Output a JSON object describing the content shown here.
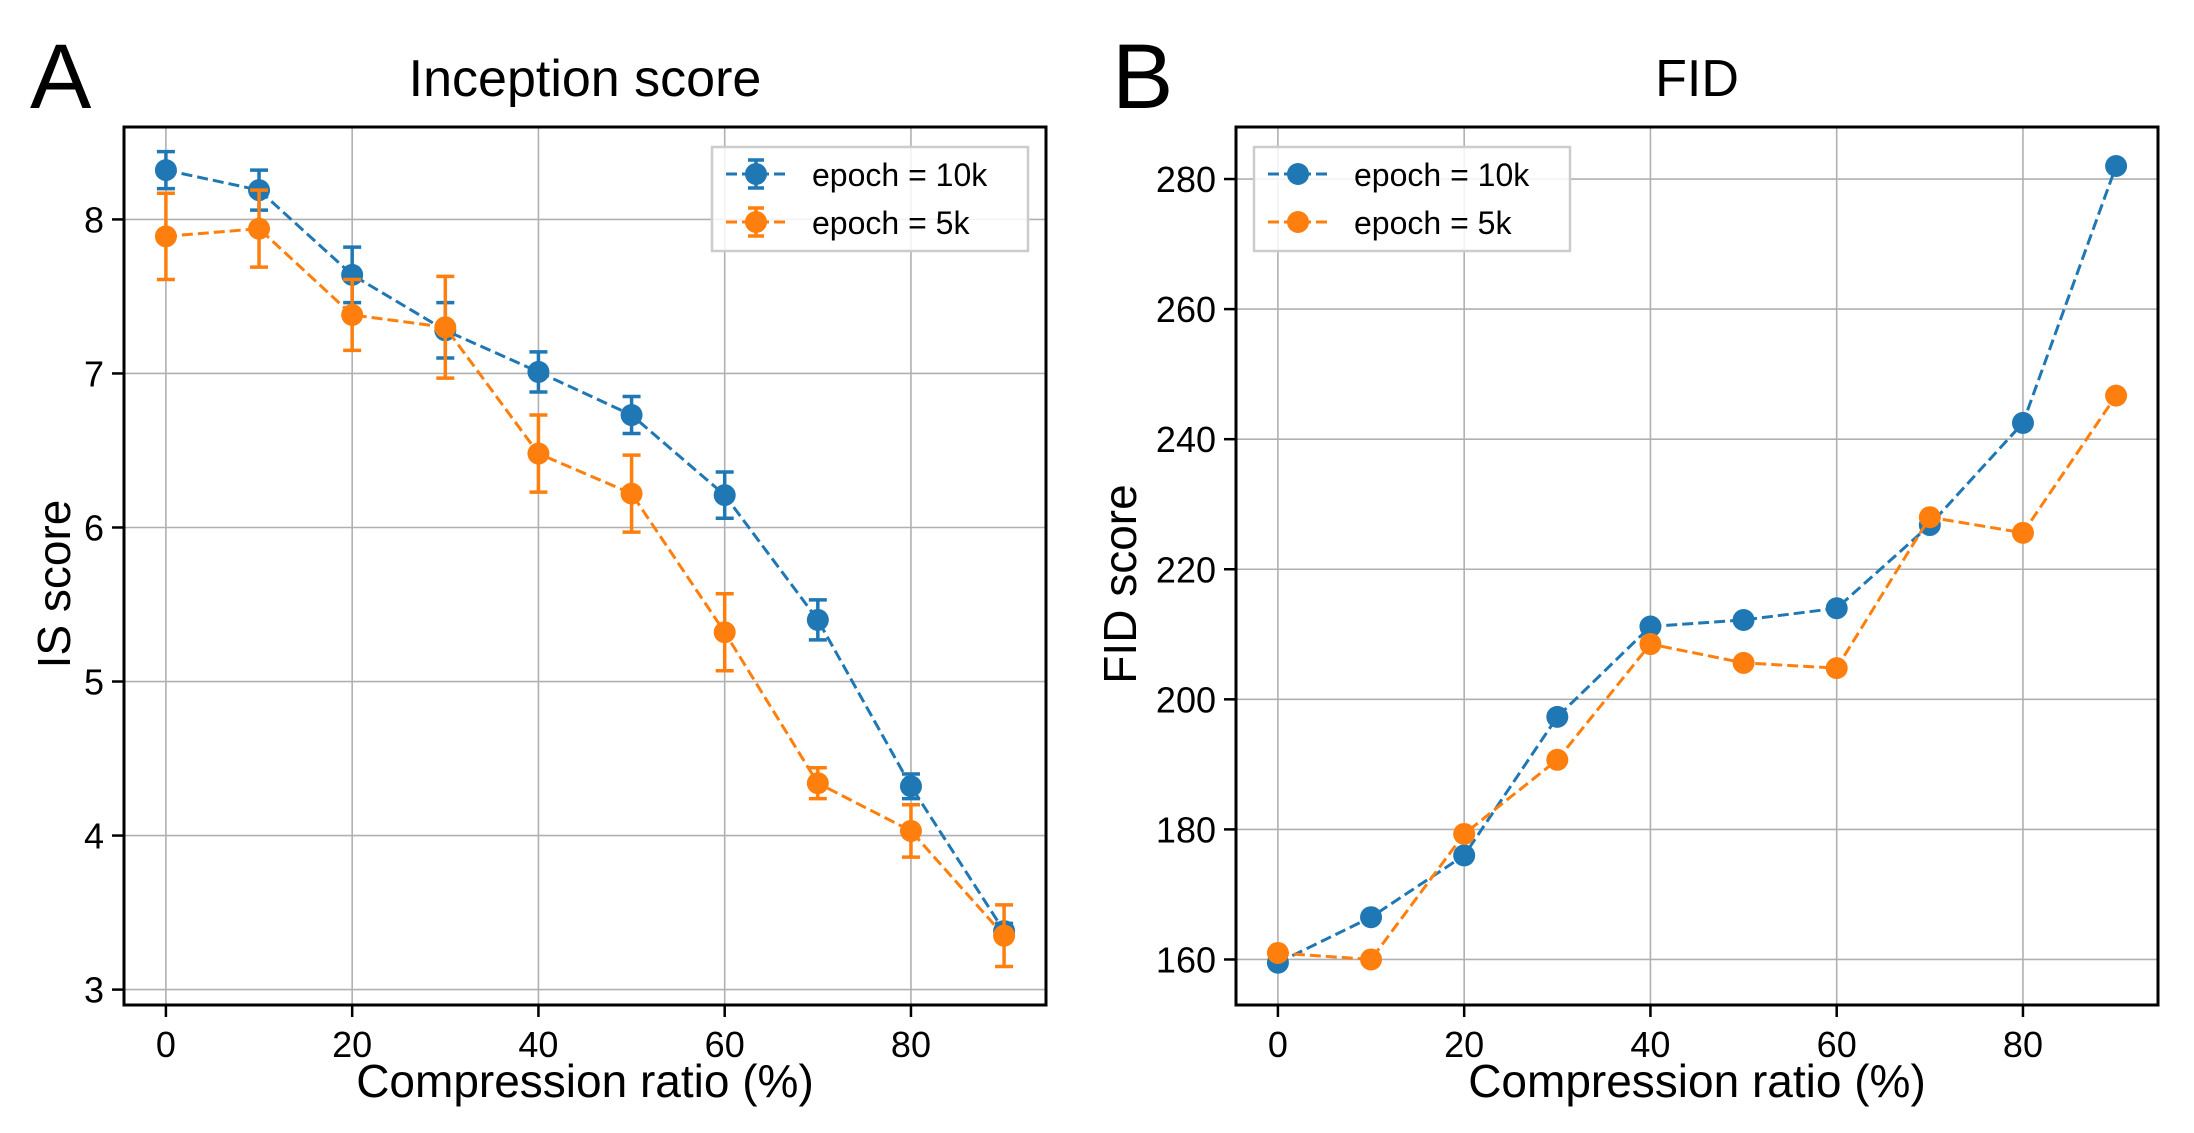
{
  "chart_data": [
    {
      "panel_label": "A",
      "type": "line",
      "title": "Inception score",
      "xlabel": "Compression ratio (%)",
      "ylabel": "IS score",
      "xlim": [
        -4.5,
        94.5
      ],
      "ylim": [
        2.9,
        8.6
      ],
      "xticks": [
        0,
        20,
        40,
        60,
        80
      ],
      "yticks": [
        3,
        4,
        5,
        6,
        7,
        8
      ],
      "grid": true,
      "legend_position": "top-right",
      "error_bars": true,
      "x": [
        0,
        10,
        20,
        30,
        40,
        50,
        60,
        70,
        80,
        90
      ],
      "series": [
        {
          "name": "epoch = 10k",
          "color": "#1f77b4",
          "values": [
            8.32,
            8.19,
            7.64,
            7.28,
            7.01,
            6.73,
            6.21,
            5.4,
            4.32,
            3.38
          ],
          "errors": [
            0.12,
            0.13,
            0.18,
            0.18,
            0.13,
            0.12,
            0.15,
            0.13,
            0.08,
            0.05
          ]
        },
        {
          "name": "epoch = 5k",
          "color": "#ff7f0e",
          "values": [
            7.89,
            7.94,
            7.38,
            7.3,
            6.48,
            6.22,
            5.32,
            4.34,
            4.03,
            3.35
          ],
          "errors": [
            0.28,
            0.25,
            0.23,
            0.33,
            0.25,
            0.25,
            0.25,
            0.1,
            0.17,
            0.2
          ]
        }
      ]
    },
    {
      "panel_label": "B",
      "type": "line",
      "title": "FID",
      "xlabel": "Compression ratio (%)",
      "ylabel": "FID score",
      "xlim": [
        -4.5,
        94.5
      ],
      "ylim": [
        153,
        288
      ],
      "xticks": [
        0,
        20,
        40,
        60,
        80
      ],
      "yticks": [
        160,
        180,
        200,
        220,
        240,
        260,
        280
      ],
      "grid": true,
      "legend_position": "top-left",
      "error_bars": false,
      "x": [
        0,
        10,
        20,
        30,
        40,
        50,
        60,
        70,
        80,
        90
      ],
      "series": [
        {
          "name": "epoch = 10k",
          "color": "#1f77b4",
          "values": [
            159.5,
            166.5,
            176.0,
            197.3,
            211.2,
            212.2,
            214.0,
            226.8,
            242.5,
            282.0
          ]
        },
        {
          "name": "epoch = 5k",
          "color": "#ff7f0e",
          "values": [
            161.0,
            160.0,
            179.3,
            190.7,
            208.5,
            205.6,
            204.8,
            228.0,
            225.6,
            246.7
          ]
        }
      ]
    }
  ]
}
